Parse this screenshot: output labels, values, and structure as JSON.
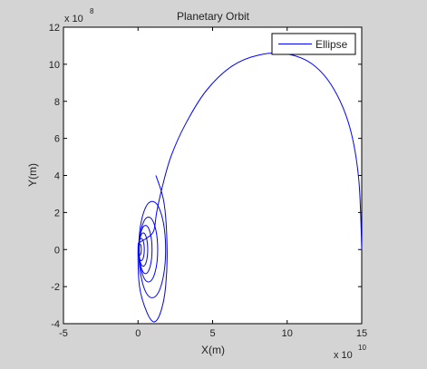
{
  "chart_data": {
    "type": "line",
    "title": "Planetary Orbit",
    "xlabel": "X(m)",
    "ylabel": "Y(m)",
    "xlim": [
      -5,
      15
    ],
    "ylim": [
      -4,
      12
    ],
    "x_ticks": [
      -5,
      0,
      5,
      10,
      15
    ],
    "y_ticks": [
      -4,
      -2,
      0,
      2,
      4,
      6,
      8,
      10,
      12
    ],
    "x_multiplier": "x 10",
    "x_exponent": "10",
    "y_multiplier": "x 10",
    "y_exponent": "8",
    "grid": false,
    "legend_position": "top-right",
    "series": [
      {
        "name": "Ellipse",
        "color": "#0000ff",
        "x": [
          15,
          14.8,
          14.2,
          13.1,
          11.7,
          10.0,
          8.1,
          6.3,
          4.6,
          3.2,
          2.2,
          1.6,
          1.25,
          1.05,
          0.55,
          0.15,
          0.0,
          0.1,
          0.6,
          1.1,
          1.55,
          1.85,
          1.95,
          1.75,
          1.2
        ],
        "y": [
          0,
          3.8,
          6.6,
          8.7,
          10.0,
          10.55,
          10.5,
          9.9,
          8.6,
          6.8,
          5.0,
          3.3,
          2.0,
          1.0,
          0.6,
          0.4,
          0.1,
          -2.0,
          -3.4,
          -3.9,
          -3.3,
          -2.0,
          0.0,
          2.5,
          4.0
        ],
        "inner_loops": [
          {
            "cx": 0.95,
            "cy": 0.0,
            "rx": 0.9,
            "ry": 2.6
          },
          {
            "cx": 0.7,
            "cy": 0.0,
            "rx": 0.62,
            "ry": 1.75
          },
          {
            "cx": 0.5,
            "cy": 0.0,
            "rx": 0.44,
            "ry": 1.3
          },
          {
            "cx": 0.35,
            "cy": 0.0,
            "rx": 0.3,
            "ry": 0.9
          },
          {
            "cx": 0.22,
            "cy": 0.0,
            "rx": 0.2,
            "ry": 0.6
          },
          {
            "cx": 0.12,
            "cy": 0.0,
            "rx": 0.1,
            "ry": 0.3
          }
        ]
      }
    ]
  }
}
